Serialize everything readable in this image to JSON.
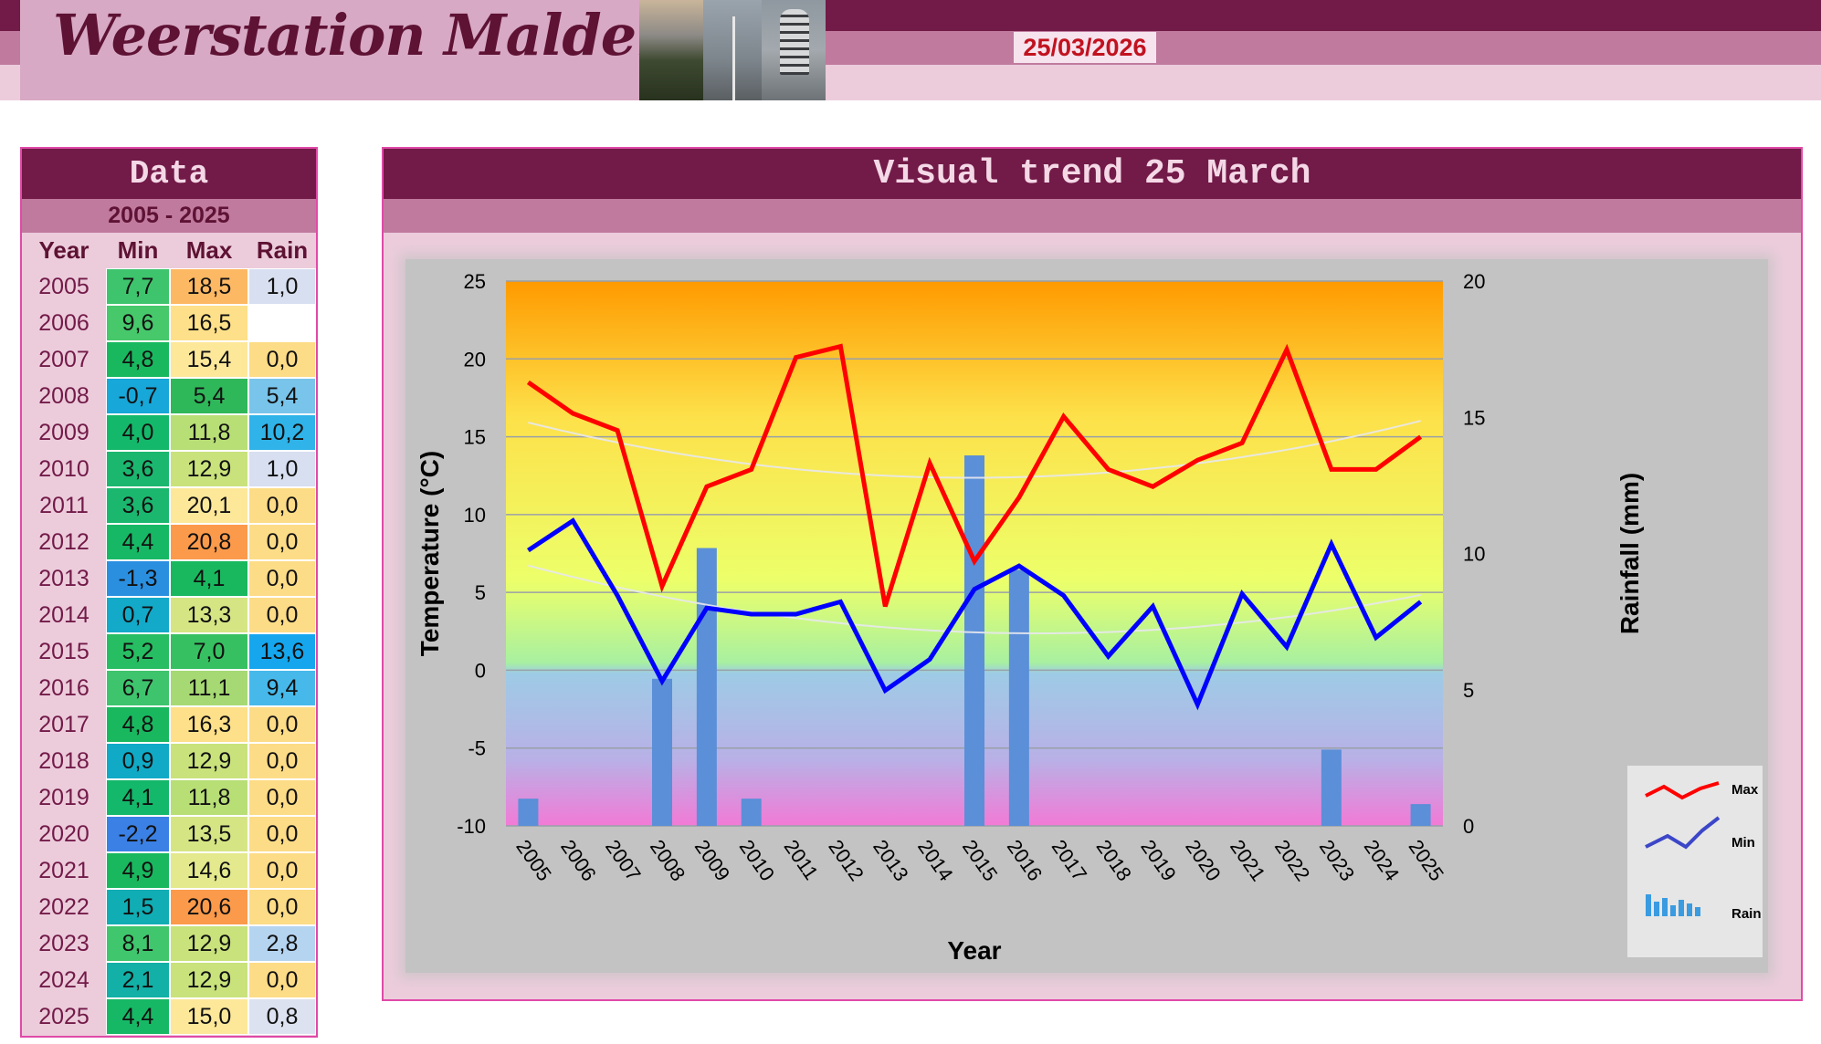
{
  "header": {
    "title": "Weerstation Malderen",
    "date": "25/03/2026"
  },
  "colors": {
    "dark": "#721a48",
    "mid": "#c07a9e",
    "light": "#ecccdb",
    "max_line": "#ff0000",
    "min_line": "#0000ff",
    "rain_bar": "#5b8fd8",
    "date_text": "#c1121f"
  },
  "table": {
    "title": "Data",
    "range": "2005 - 2025",
    "headers": {
      "year": "Year",
      "min": "Min",
      "max": "Max",
      "rain": "Rain"
    },
    "rows": [
      {
        "year": "2005",
        "min": "7,7",
        "max": "18,5",
        "rain": "1,0",
        "min_color": "#3ec46d",
        "max_color": "#fdb863",
        "rain_color": "#d7dff0"
      },
      {
        "year": "2006",
        "min": "9,6",
        "max": "16,5",
        "rain": "",
        "min_color": "#46c86b",
        "max_color": "#fde089",
        "rain_color": "#ffffff"
      },
      {
        "year": "2007",
        "min": "4,8",
        "max": "15,4",
        "rain": "0,0",
        "min_color": "#19b85f",
        "max_color": "#fde89a",
        "rain_color": "#fddc87"
      },
      {
        "year": "2008",
        "min": "-0,7",
        "max": "5,4",
        "rain": "5,4",
        "min_color": "#17a7d8",
        "max_color": "#2fb85a",
        "rain_color": "#79c4ea"
      },
      {
        "year": "2009",
        "min": "4,0",
        "max": "11,8",
        "rain": "10,2",
        "min_color": "#14b86a",
        "max_color": "#b8de76",
        "rain_color": "#2fb3e8"
      },
      {
        "year": "2010",
        "min": "3,6",
        "max": "12,9",
        "rain": "1,0",
        "min_color": "#1bb76f",
        "max_color": "#c9e27c",
        "rain_color": "#d7dff0"
      },
      {
        "year": "2011",
        "min": "3,6",
        "max": "20,1",
        "rain": "0,0",
        "min_color": "#1bb76f",
        "max_color": "#fde89a",
        "rain_color": "#fddc87"
      },
      {
        "year": "2012",
        "min": "4,4",
        "max": "20,8",
        "rain": "0,0",
        "min_color": "#17b865",
        "max_color": "#fb9a4b",
        "rain_color": "#fddc87"
      },
      {
        "year": "2013",
        "min": "-1,3",
        "max": "4,1",
        "rain": "0,0",
        "min_color": "#2b8fe0",
        "max_color": "#19b85f",
        "rain_color": "#fddc87"
      },
      {
        "year": "2014",
        "min": "0,7",
        "max": "13,3",
        "rain": "0,0",
        "min_color": "#13a9c9",
        "max_color": "#d6e584",
        "rain_color": "#fddc87"
      },
      {
        "year": "2015",
        "min": "5,2",
        "max": "7,0",
        "rain": "13,6",
        "min_color": "#27bd62",
        "max_color": "#37c061",
        "rain_color": "#15a6ee"
      },
      {
        "year": "2016",
        "min": "6,7",
        "max": "11,1",
        "rain": "9,4",
        "min_color": "#3ec46d",
        "max_color": "#a6d973",
        "rain_color": "#46b9ea"
      },
      {
        "year": "2017",
        "min": "4,8",
        "max": "16,3",
        "rain": "0,0",
        "min_color": "#19b85f",
        "max_color": "#fde089",
        "rain_color": "#fddc87"
      },
      {
        "year": "2018",
        "min": "0,9",
        "max": "12,9",
        "rain": "0,0",
        "min_color": "#10aac6",
        "max_color": "#c9e27c",
        "rain_color": "#fddc87"
      },
      {
        "year": "2019",
        "min": "4,1",
        "max": "11,8",
        "rain": "0,0",
        "min_color": "#14b86a",
        "max_color": "#b8de76",
        "rain_color": "#fddc87"
      },
      {
        "year": "2020",
        "min": "-2,2",
        "max": "13,5",
        "rain": "0,0",
        "min_color": "#3b80e4",
        "max_color": "#d6e584",
        "rain_color": "#fddc87"
      },
      {
        "year": "2021",
        "min": "4,9",
        "max": "14,6",
        "rain": "0,0",
        "min_color": "#19b85f",
        "max_color": "#e3e98c",
        "rain_color": "#fddc87"
      },
      {
        "year": "2022",
        "min": "1,5",
        "max": "20,6",
        "rain": "0,0",
        "min_color": "#10adb4",
        "max_color": "#fb9a4b",
        "rain_color": "#fddc87"
      },
      {
        "year": "2023",
        "min": "8,1",
        "max": "12,9",
        "rain": "2,8",
        "min_color": "#40c66d",
        "max_color": "#c9e27c",
        "rain_color": "#b5d4f0"
      },
      {
        "year": "2024",
        "min": "2,1",
        "max": "12,9",
        "rain": "0,0",
        "min_color": "#12b0a6",
        "max_color": "#c9e27c",
        "rain_color": "#fddc87"
      },
      {
        "year": "2025",
        "min": "4,4",
        "max": "15,0",
        "rain": "0,8",
        "min_color": "#17b865",
        "max_color": "#fde89a",
        "rain_color": "#dde2f0"
      }
    ]
  },
  "chart_panel": {
    "title": "Visual trend 25 March"
  },
  "chart_data": {
    "type": "line",
    "title": "",
    "xlabel": "Year",
    "ylabel": "Temperature (°C)",
    "y2label": "Rainfall (mm)",
    "ylim": [
      -10,
      25
    ],
    "y2lim": [
      0,
      20
    ],
    "yticks": [
      -10,
      -5,
      0,
      5,
      10,
      15,
      20,
      25
    ],
    "y2ticks": [
      0,
      5,
      10,
      15,
      20
    ],
    "grid": true,
    "legend_position": "bottom-right",
    "categories": [
      "2005",
      "2006",
      "2007",
      "2008",
      "2009",
      "2010",
      "2011",
      "2012",
      "2013",
      "2014",
      "2015",
      "2016",
      "2017",
      "2018",
      "2019",
      "2020",
      "2021",
      "2022",
      "2023",
      "2024",
      "2025"
    ],
    "series": [
      {
        "name": "Max",
        "type": "line",
        "color": "#ff0000",
        "values": [
          18.5,
          16.5,
          15.4,
          5.4,
          11.8,
          12.9,
          20.1,
          20.8,
          4.1,
          13.3,
          7.0,
          11.1,
          16.3,
          12.9,
          11.8,
          13.5,
          14.6,
          20.6,
          12.9,
          12.9,
          15.0
        ]
      },
      {
        "name": "Min",
        "type": "line",
        "color": "#0000ff",
        "values": [
          7.7,
          9.6,
          4.8,
          -0.7,
          4.0,
          3.6,
          3.6,
          4.4,
          -1.3,
          0.7,
          5.2,
          6.7,
          4.8,
          0.9,
          4.1,
          -2.2,
          4.9,
          1.5,
          8.1,
          2.1,
          4.4
        ]
      },
      {
        "name": "Rain",
        "type": "bar",
        "axis": "y2",
        "color": "#5b8fd8",
        "values": [
          1.0,
          null,
          0.0,
          5.4,
          10.2,
          1.0,
          0.0,
          0.0,
          0.0,
          0.0,
          13.6,
          9.4,
          0.0,
          0.0,
          0.0,
          0.0,
          0.0,
          0.0,
          2.8,
          0.0,
          0.8
        ]
      }
    ]
  }
}
